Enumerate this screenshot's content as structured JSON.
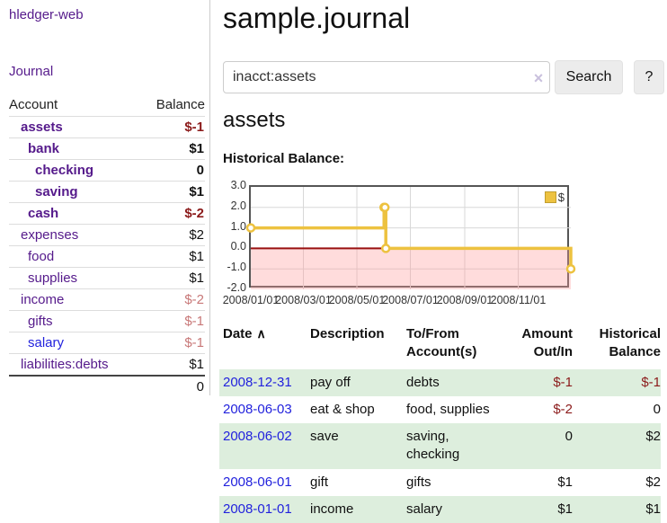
{
  "app": {
    "brand": "hledger-web",
    "nav_journal": "Journal"
  },
  "sidebar": {
    "columns": {
      "account": "Account",
      "balance": "Balance"
    },
    "accounts": [
      {
        "name": "assets",
        "depth": 1,
        "balance": "$-1",
        "bold": true,
        "link": "visited",
        "tone": "neg"
      },
      {
        "name": "bank",
        "depth": 2,
        "balance": "$1",
        "bold": true,
        "link": "visited",
        "tone": "pos"
      },
      {
        "name": "checking",
        "depth": 3,
        "balance": "0",
        "bold": true,
        "link": "visited",
        "tone": "pos"
      },
      {
        "name": "saving",
        "depth": 3,
        "balance": "$1",
        "bold": true,
        "link": "visited",
        "tone": "pos"
      },
      {
        "name": "cash",
        "depth": 2,
        "balance": "$-2",
        "bold": true,
        "link": "visited",
        "tone": "neg"
      },
      {
        "name": "expenses",
        "depth": 1,
        "balance": "$2",
        "bold": false,
        "link": "visited",
        "tone": "pos"
      },
      {
        "name": "food",
        "depth": 2,
        "balance": "$1",
        "bold": false,
        "link": "visited",
        "tone": "pos"
      },
      {
        "name": "supplies",
        "depth": 2,
        "balance": "$1",
        "bold": false,
        "link": "visited",
        "tone": "pos"
      },
      {
        "name": "income",
        "depth": 1,
        "balance": "$-2",
        "bold": false,
        "link": "visited",
        "tone": "dim"
      },
      {
        "name": "gifts",
        "depth": 2,
        "balance": "$-1",
        "bold": false,
        "link": "visited",
        "tone": "dim"
      },
      {
        "name": "salary",
        "depth": 2,
        "balance": "$-1",
        "bold": false,
        "link": "new",
        "tone": "dim"
      },
      {
        "name": "liabilities:debts",
        "depth": 1,
        "balance": "$1",
        "bold": false,
        "link": "visited",
        "tone": "pos"
      }
    ],
    "total": "0"
  },
  "header": {
    "title": "sample.journal"
  },
  "search": {
    "value": "inacct:assets",
    "clear_icon": "×",
    "button": "Search",
    "help_button": "?"
  },
  "account_page": {
    "heading": "assets",
    "chart_label": "Historical Balance:"
  },
  "chart_data": {
    "type": "line",
    "mode": "step",
    "title": "Historical Balance",
    "series": [
      {
        "name": "$",
        "color": "#edc240",
        "x": [
          "2008-01-01",
          "2008-06-01",
          "2008-06-02",
          "2008-06-03",
          "2008-12-31"
        ],
        "y": [
          1,
          2,
          2,
          0,
          -1
        ]
      }
    ],
    "xlim": [
      "2008-01-01",
      "2008-12-31"
    ],
    "ylim": [
      -2,
      3
    ],
    "yticks": [
      "3.0",
      "2.0",
      "1.0",
      "0.0",
      "-1.0",
      "-2.0"
    ],
    "ytick_values": [
      3,
      2,
      1,
      0,
      -1,
      -2
    ],
    "xticks": [
      "2008/01/01",
      "2008/03/01",
      "2008/05/01",
      "2008/07/01",
      "2008/09/01",
      "2008/11/01"
    ],
    "xtick_values": [
      "2008-01-01",
      "2008-03-01",
      "2008-05-01",
      "2008-07-01",
      "2008-09-01",
      "2008-11-01"
    ],
    "grid": true,
    "legend": {
      "position": "ne",
      "label": "$"
    },
    "negative_region_color": "#fcdcdc",
    "zero_line_color": "#991111"
  },
  "register": {
    "sort_icon": "∧",
    "columns": [
      {
        "label": "Date",
        "align": "left",
        "sorted": true
      },
      {
        "label": "Description",
        "align": "left",
        "sorted": false
      },
      {
        "label": "To/From Account(s)",
        "align": "left",
        "sorted": false
      },
      {
        "label": "Amount Out/In",
        "align": "right",
        "sorted": false
      },
      {
        "label": "Historical Balance",
        "align": "right",
        "sorted": false
      }
    ],
    "rows": [
      {
        "date": "2008-12-31",
        "description": "pay off",
        "accounts": "debts",
        "amount": "$-1",
        "balance": "$-1"
      },
      {
        "date": "2008-06-03",
        "description": "eat & shop",
        "accounts": "food, supplies",
        "amount": "$-2",
        "balance": "0"
      },
      {
        "date": "2008-06-02",
        "description": "save",
        "accounts": "saving, checking",
        "amount": "0",
        "balance": "$2"
      },
      {
        "date": "2008-06-01",
        "description": "gift",
        "accounts": "gifts",
        "amount": "$1",
        "balance": "$2"
      },
      {
        "date": "2008-01-01",
        "description": "income",
        "accounts": "salary",
        "amount": "$1",
        "balance": "$1"
      }
    ]
  }
}
